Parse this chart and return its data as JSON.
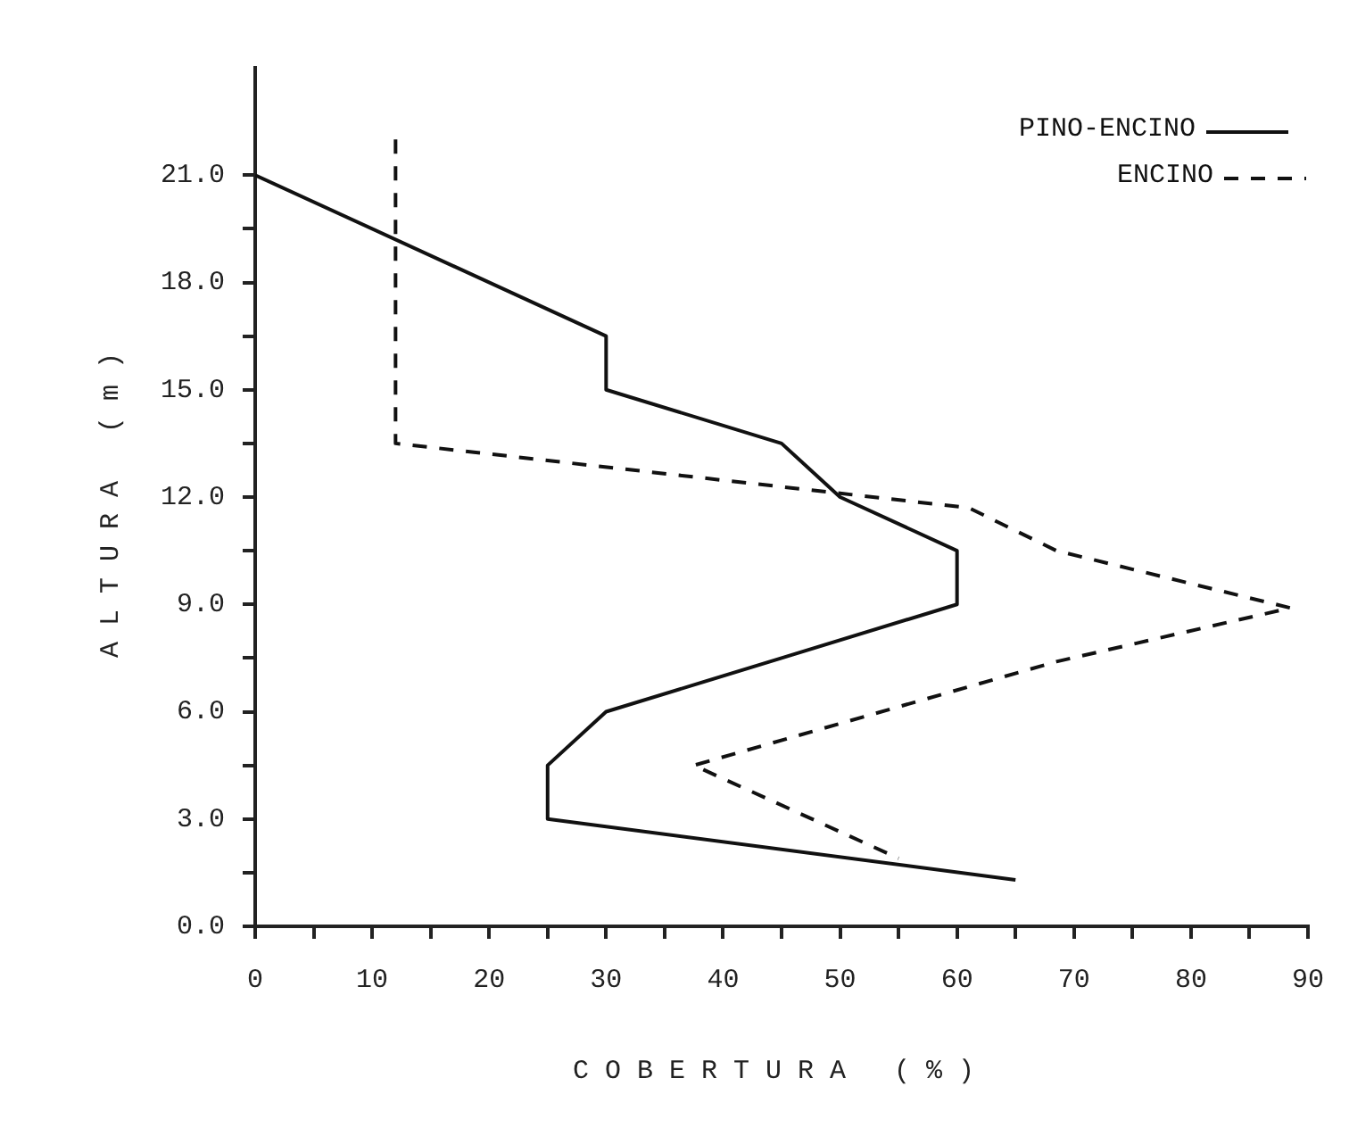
{
  "chart_data": {
    "type": "line",
    "xlabel": "COBERTURA (%)",
    "ylabel": "ALTURA (m)",
    "legend": "top right",
    "grid": false,
    "marker": "none",
    "xlim": [
      0,
      90
    ],
    "ylim": [
      0,
      24
    ],
    "xticks": [
      0,
      {
        "value": 5,
        "label": null
      },
      10,
      {
        "value": 15,
        "label": null
      },
      20,
      {
        "value": 25,
        "label": null
      },
      30,
      {
        "value": 35,
        "label": null
      },
      40,
      {
        "value": 45,
        "label": null
      },
      50,
      {
        "value": 55,
        "label": null
      },
      60,
      {
        "value": 65,
        "label": null
      },
      70,
      {
        "value": 75,
        "label": null
      },
      80,
      {
        "value": 85,
        "label": null
      },
      90
    ],
    "yticks": [
      {
        "value": 0,
        "label": "0.0"
      },
      {
        "value": 1.5,
        "label": null
      },
      {
        "value": 3,
        "label": "3.0"
      },
      {
        "value": 4.5,
        "label": null
      },
      {
        "value": 6,
        "label": "6.0"
      },
      {
        "value": 7.5,
        "label": null
      },
      {
        "value": 9,
        "label": "9.0"
      },
      {
        "value": 10.5,
        "label": null
      },
      {
        "value": 12,
        "label": "12.0"
      },
      {
        "value": 13.5,
        "label": null
      },
      {
        "value": 15,
        "label": "15.0"
      },
      {
        "value": 16.5,
        "label": null
      },
      {
        "value": 18,
        "label": "18.0"
      },
      {
        "value": 19.5,
        "label": null
      },
      {
        "value": 21,
        "label": "21.0"
      }
    ],
    "series": [
      {
        "name": "PINO-ENCINO",
        "color": "#111111",
        "line_style": "solid",
        "x": [
          0,
          30,
          30,
          45,
          50,
          60,
          60,
          45,
          30,
          25,
          25,
          65
        ],
        "values": [
          21,
          16.5,
          15,
          13.5,
          12,
          10.5,
          9,
          7.5,
          6,
          4.5,
          3,
          1.3
        ]
      },
      {
        "name": "ENCINO",
        "color": "#111111",
        "line_style": "dashed",
        "x": [
          12,
          12,
          61,
          68.5,
          88.5,
          68.5,
          37.5,
          55
        ],
        "values": [
          22,
          13.5,
          11.7,
          10.5,
          8.9,
          7.4,
          4.5,
          1.9
        ]
      }
    ]
  }
}
